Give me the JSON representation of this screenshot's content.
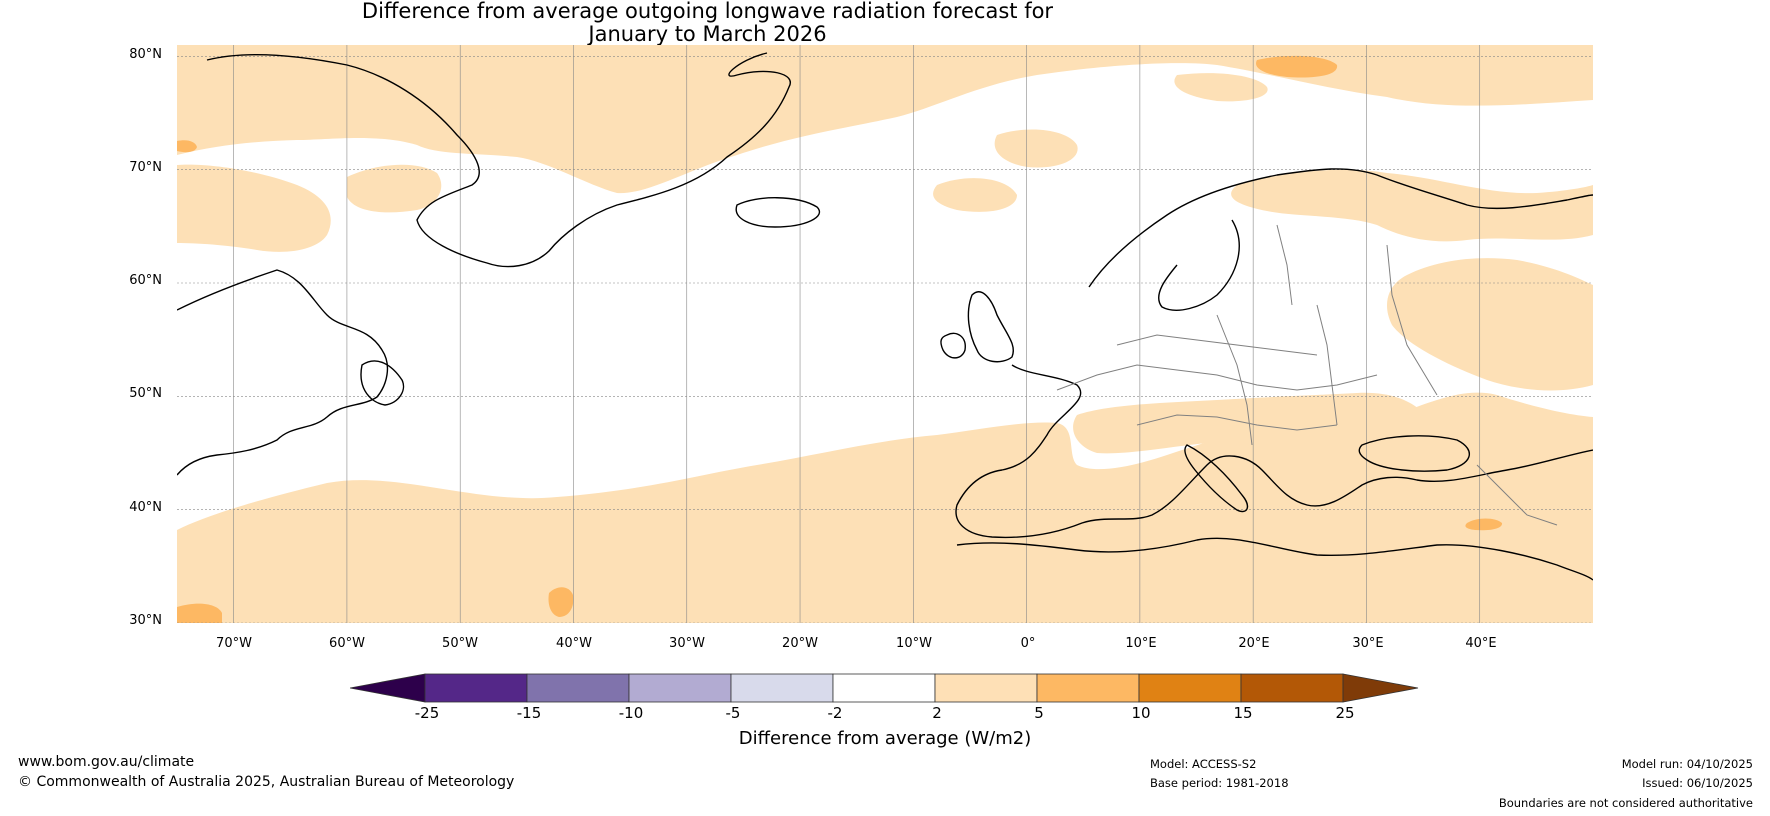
{
  "title": {
    "line1": "Difference from average outgoing longwave radiation forecast for",
    "line2": "January to March 2026"
  },
  "map": {
    "latitude_labels": [
      "80°N",
      "70°N",
      "60°N",
      "50°N",
      "40°N",
      "30°N"
    ],
    "longitude_labels": [
      "70°W",
      "60°W",
      "50°W",
      "40°W",
      "30°W",
      "20°W",
      "10°W",
      "0°",
      "10°E",
      "20°E",
      "30°E",
      "40°E"
    ],
    "lat_range": [
      30,
      81
    ],
    "lon_range": [
      -75,
      50
    ],
    "colors": {
      "pale_orange": "#fde0b6",
      "mid_orange": "#fdb863",
      "coast": "#000000",
      "border": "#808080",
      "grid": "#888888"
    }
  },
  "colorbar": {
    "ticks": [
      "-25",
      "-15",
      "-10",
      "-5",
      "-2",
      "2",
      "5",
      "10",
      "15",
      "25"
    ],
    "colors": [
      "#2d004b",
      "#542788",
      "#8073ac",
      "#b2abd2",
      "#d8daeb",
      "#ffffff",
      "#fee0b6",
      "#fdb863",
      "#e08214",
      "#b35806",
      "#7f3b08"
    ],
    "label": "Difference from average (W/m2)"
  },
  "footer": {
    "url": "www.bom.gov.au/climate",
    "copyright": "© Commonwealth of Australia 2025, Australian Bureau of Meteorology",
    "model": "Model: ACCESS-S2",
    "base_period": "Base period: 1981-2018",
    "model_run": "Model run: 04/10/2025",
    "issued": "Issued: 06/10/2025",
    "disclaimer": "Boundaries are not considered authoritative"
  }
}
